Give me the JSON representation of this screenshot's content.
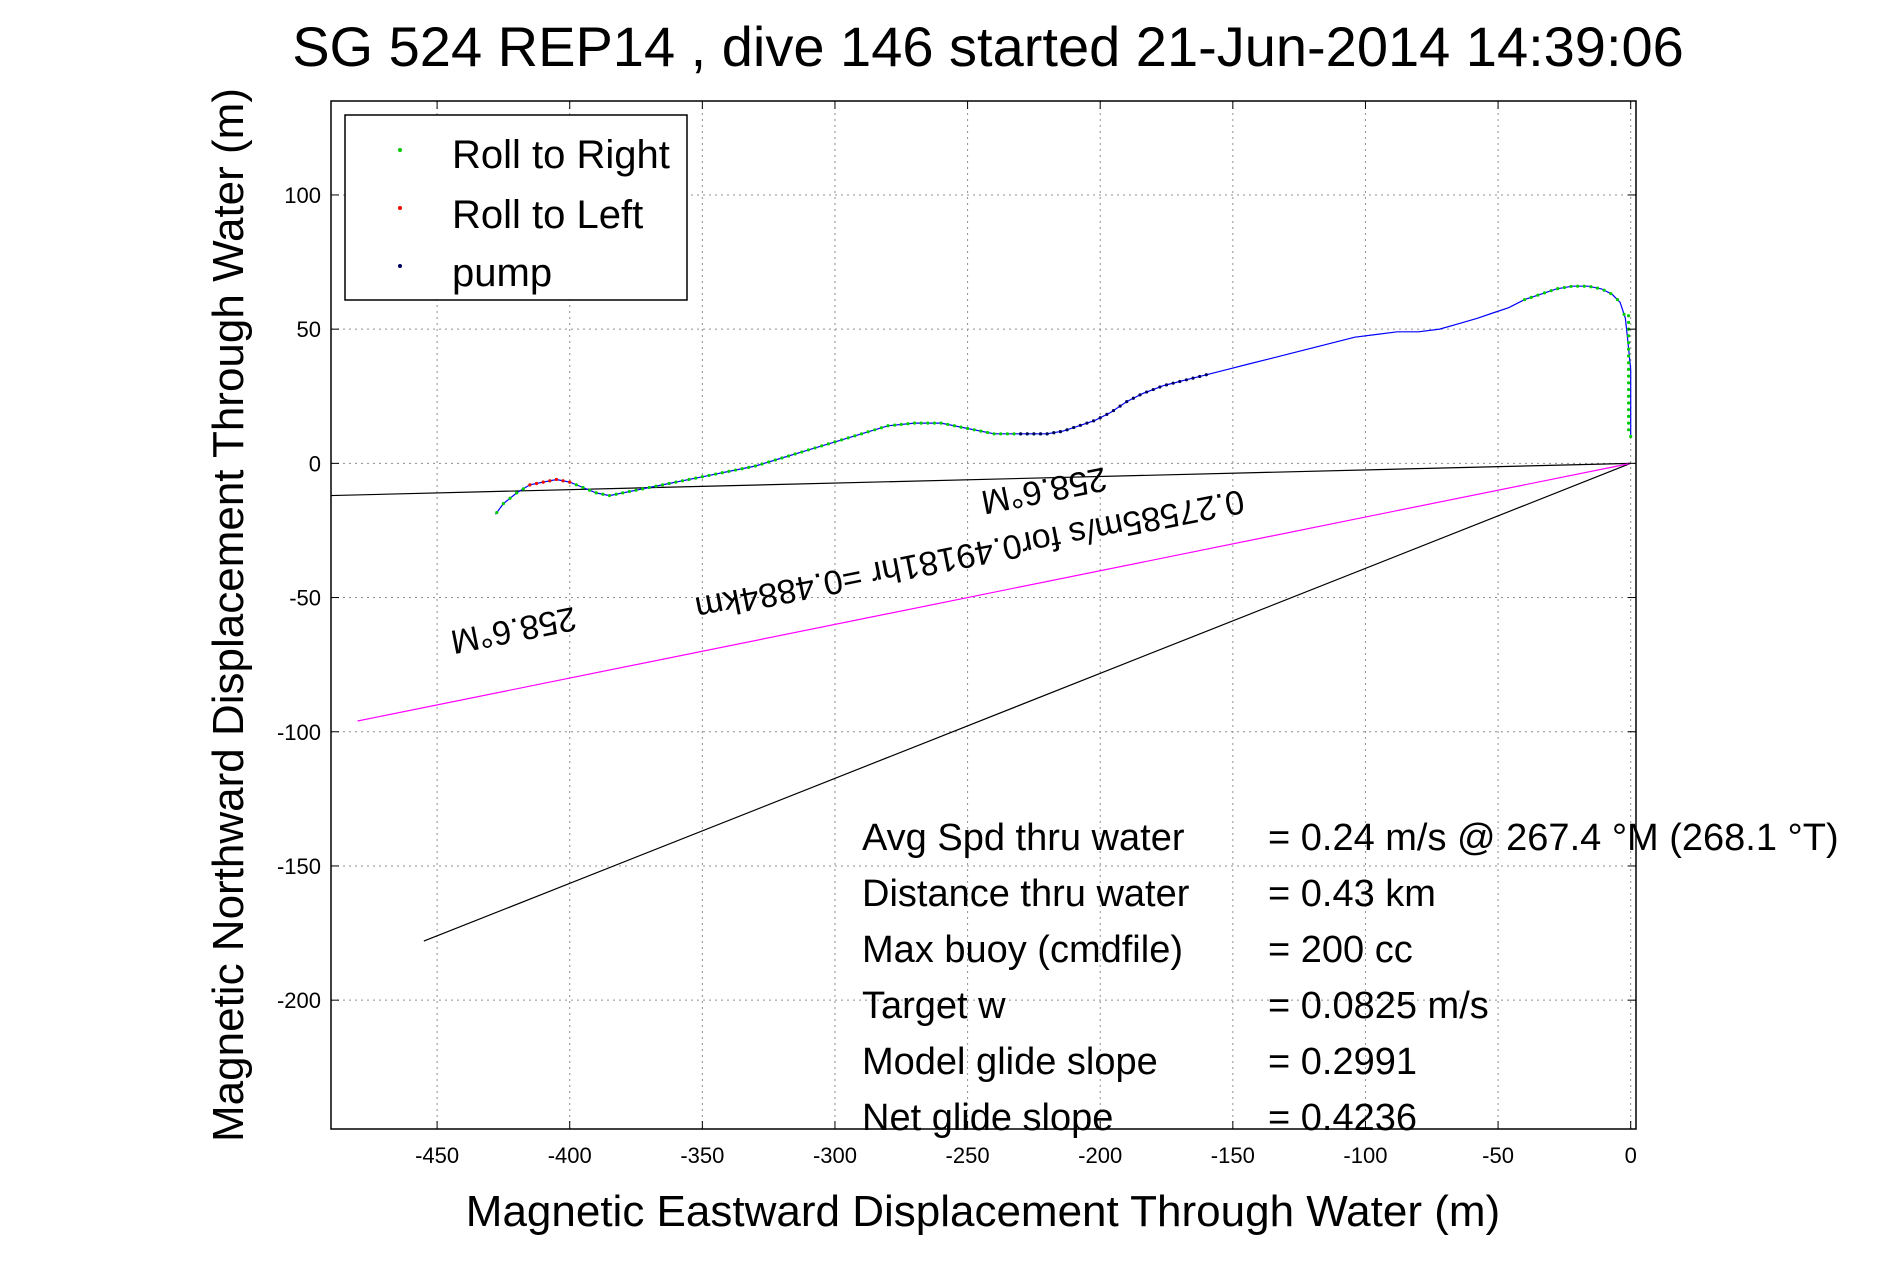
{
  "chart_data": {
    "type": "scatter",
    "title": "SG 524   REP14  , dive 146 started 21-Jun-2014 14:39:06",
    "xlabel": "Magnetic Eastward Displacement Through Water (m)",
    "ylabel": "Magnetic Northward Displacement Through Water (m)",
    "xlim": [
      -490,
      2
    ],
    "ylim": [
      -248,
      135
    ],
    "xticks": [
      -450,
      -400,
      -350,
      -300,
      -250,
      -200,
      -150,
      -100,
      -50,
      0
    ],
    "yticks": [
      100,
      50,
      0,
      -50,
      -100,
      -150,
      -200
    ],
    "grid": true,
    "legend_position": "top-left",
    "legend": [
      {
        "label": "Roll to Right",
        "color": "#00cc00"
      },
      {
        "label": "Roll to Left",
        "color": "#ff0000"
      },
      {
        "label": "pump",
        "color": "#000060"
      }
    ],
    "track": {
      "color": "#0000ff",
      "x": [
        0,
        0,
        -1,
        -2,
        -4,
        -7,
        -11,
        -16,
        -22,
        -28,
        -34,
        -40,
        -46,
        -52,
        -58,
        -65,
        -72,
        -80,
        -88,
        -96,
        -104,
        -112,
        -120,
        -128,
        -136,
        -144,
        -152,
        -160,
        -168,
        -176,
        -184,
        -190,
        -196,
        -202,
        -208,
        -214,
        -220,
        -230,
        -240,
        -250,
        -260,
        -270,
        -280,
        -290,
        -300,
        -310,
        -320,
        -330,
        -340,
        -350,
        -360,
        -370,
        -380,
        -385,
        -390,
        -395,
        -400,
        -405,
        -410,
        -415,
        -420,
        -425,
        -428
      ],
      "y": [
        10,
        35,
        45,
        54,
        60,
        63,
        65,
        66,
        66,
        65,
        63,
        61,
        58,
        56,
        54,
        52,
        50,
        49,
        49,
        48,
        47,
        45,
        43,
        41,
        39,
        37,
        35,
        33,
        31,
        29,
        26,
        23,
        19,
        16,
        14,
        12,
        11,
        11,
        11,
        13,
        15,
        15,
        14,
        11,
        8,
        5,
        2,
        -1,
        -3,
        -5,
        -7,
        -9,
        -11,
        -12,
        -11,
        -9,
        -7,
        -6,
        -7,
        -8,
        -11,
        -15,
        -19
      ]
    },
    "markers": [
      {
        "series": "Roll to Right",
        "color": "#00cc00",
        "x_range": [
          -40,
          0
        ]
      },
      {
        "series": "Roll to Right",
        "color": "#00cc00",
        "x_range": [
          -430,
          -210
        ]
      },
      {
        "series": "Roll to Left",
        "color": "#ff0000",
        "x_range": [
          -415,
          -400
        ]
      },
      {
        "series": "pump",
        "color": "#000060",
        "x_range": [
          -230,
          -160
        ]
      }
    ],
    "lines": [
      {
        "name": "black-a",
        "color": "#000000",
        "x": [
          0,
          -490
        ],
        "y": [
          0,
          -12
        ]
      },
      {
        "name": "black-b",
        "color": "#000000",
        "x": [
          0,
          -455
        ],
        "y": [
          0,
          -178
        ]
      },
      {
        "name": "magenta",
        "color": "#ff00ff",
        "x": [
          0,
          -480
        ],
        "y": [
          0,
          -96
        ]
      }
    ],
    "annotations": [
      {
        "text": "258.6°M",
        "x": -222,
        "y": -6,
        "rotate": 168.8
      },
      {
        "text": "0.27585m/s for0.49181hr =0.4884km",
        "x": -250,
        "y": -30,
        "rotate": 168.8
      },
      {
        "text": "258.6°M",
        "x": -422,
        "y": -58,
        "rotate": 168.8
      }
    ],
    "stats": [
      {
        "label": "Avg Spd thru water",
        "value": "=  0.24 m/s @ 267.4  °M (268.1 °T)"
      },
      {
        "label": "Distance thru water",
        "value": "=  0.43 km"
      },
      {
        "label": "Max buoy (cmdfile)",
        "value": "= 200 cc"
      },
      {
        "label": "Target w",
        "value": "= 0.0825 m/s"
      },
      {
        "label": "Model glide slope",
        "value": "= 0.2991"
      },
      {
        "label": "Net glide slope",
        "value": "= 0.4236"
      }
    ]
  }
}
